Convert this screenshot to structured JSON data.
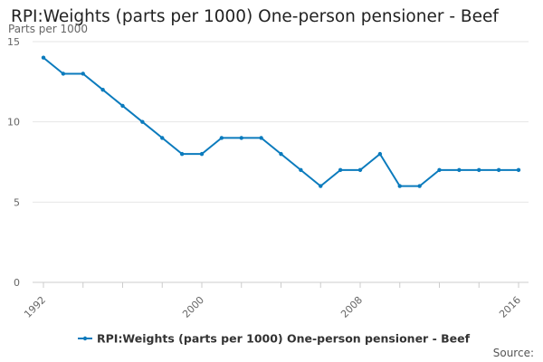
{
  "chart_data": {
    "type": "line",
    "title": "RPI:Weights (parts per 1000) One-person pensioner - Beef",
    "ylabel": "Parts per 1000",
    "xlabel": "",
    "source_label": "Source:",
    "x": [
      1992,
      1993,
      1994,
      1995,
      1996,
      1997,
      1998,
      1999,
      2000,
      2001,
      2002,
      2003,
      2004,
      2005,
      2006,
      2007,
      2008,
      2009,
      2010,
      2011,
      2012,
      2013,
      2014,
      2015,
      2016
    ],
    "x_tick_labels": [
      "1992",
      "2000",
      "2008",
      "2016"
    ],
    "y_tick_labels": [
      "0",
      "5",
      "10",
      "15"
    ],
    "ylim": [
      0,
      15
    ],
    "grid": true,
    "legend_position": "bottom",
    "series": [
      {
        "name": "RPI:Weights (parts per 1000) One-person pensioner - Beef",
        "color": "#0b7bbd",
        "values": [
          14,
          13,
          13,
          12,
          11,
          10,
          9,
          8,
          8,
          9,
          9,
          9,
          8,
          7,
          6,
          7,
          7,
          8,
          6,
          6,
          7,
          7,
          7,
          7,
          7
        ]
      }
    ]
  }
}
